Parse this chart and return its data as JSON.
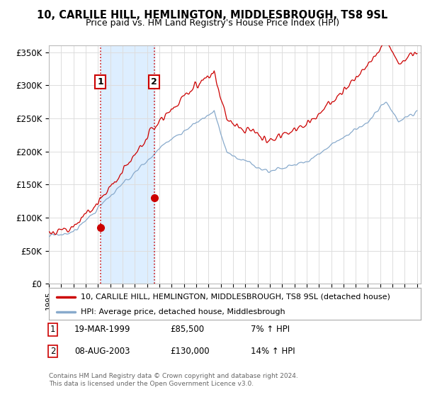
{
  "title": "10, CARLILE HILL, HEMLINGTON, MIDDLESBROUGH, TS8 9SL",
  "subtitle": "Price paid vs. HM Land Registry's House Price Index (HPI)",
  "ylabel_ticks": [
    "£0",
    "£50K",
    "£100K",
    "£150K",
    "£200K",
    "£250K",
    "£300K",
    "£350K"
  ],
  "ytick_values": [
    0,
    50000,
    100000,
    150000,
    200000,
    250000,
    300000,
    350000
  ],
  "ylim": [
    0,
    360000
  ],
  "x_start_year": 1995,
  "x_end_year": 2025,
  "sale1_date": 1999.21,
  "sale1_price": 85500,
  "sale1_label": "1",
  "sale1_text": "19-MAR-1999",
  "sale1_price_text": "£85,500",
  "sale1_hpi_text": "7% ↑ HPI",
  "sale2_date": 2003.59,
  "sale2_price": 130000,
  "sale2_label": "2",
  "sale2_text": "08-AUG-2003",
  "sale2_price_text": "£130,000",
  "sale2_hpi_text": "14% ↑ HPI",
  "line1_color": "#cc0000",
  "line2_color": "#88aacc",
  "marker_color": "#cc0000",
  "vline_color": "#cc0000",
  "shade_color": "#ddeeff",
  "legend_line1": "10, CARLILE HILL, HEMLINGTON, MIDDLESBROUGH, TS8 9SL (detached house)",
  "legend_line2": "HPI: Average price, detached house, Middlesbrough",
  "footnote": "Contains HM Land Registry data © Crown copyright and database right 2024.\nThis data is licensed under the Open Government Licence v3.0.",
  "background_color": "#ffffff",
  "grid_color": "#dddddd"
}
